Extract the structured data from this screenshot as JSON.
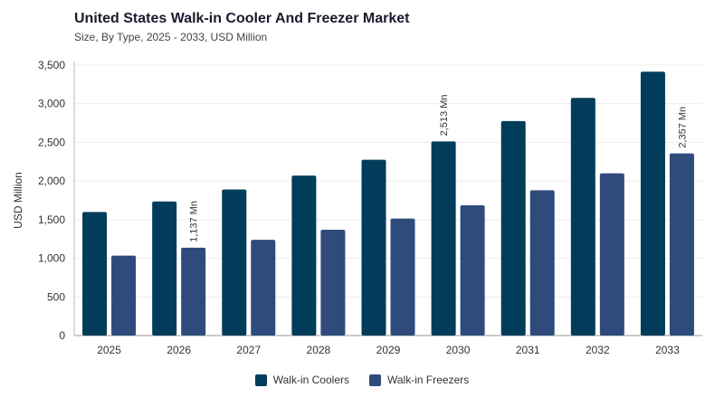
{
  "chart_data": {
    "type": "bar",
    "title": "United States Walk-in Cooler And Freezer Market",
    "subtitle": "Size, By Type, 2025 - 2033, USD Million",
    "ylabel": "USD Million",
    "xlabel": "",
    "ylim": [
      0,
      3500
    ],
    "yticks": [
      0,
      500,
      1000,
      1500,
      2000,
      2500,
      3000,
      3500
    ],
    "ytick_labels": [
      "0",
      "500",
      "1,000",
      "1,500",
      "2,000",
      "2,500",
      "3,000",
      "3,500"
    ],
    "grid": true,
    "legend_position": "bottom-center",
    "categories": [
      "2025",
      "2026",
      "2027",
      "2028",
      "2029",
      "2030",
      "2031",
      "2032",
      "2033"
    ],
    "series": [
      {
        "name": "Walk-in Coolers",
        "color": "#013d5a",
        "values": [
          1600,
          1735,
          1890,
          2070,
          2275,
          2513,
          2775,
          3075,
          3415
        ]
      },
      {
        "name": "Walk-in Freezers",
        "color": "#2f4b7c",
        "values": [
          1035,
          1137,
          1240,
          1370,
          1515,
          1685,
          1880,
          2100,
          2357
        ]
      }
    ],
    "annotations": [
      {
        "series": 1,
        "index": 1,
        "text": "1,137 Mn"
      },
      {
        "series": 0,
        "index": 5,
        "text": "2,513 Mn"
      },
      {
        "series": 1,
        "index": 8,
        "text": "2,357 Mn"
      }
    ]
  }
}
